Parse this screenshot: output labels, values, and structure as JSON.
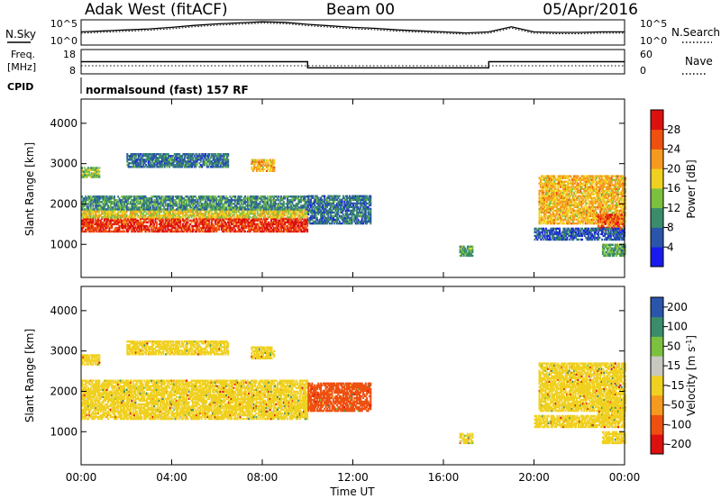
{
  "header": {
    "station": "Adak West (fitACF)",
    "beam": "Beam 00",
    "date": "05/Apr/2016"
  },
  "noise_panel": {
    "left_label": "N.Sky",
    "right_label": "N.Search",
    "left_ticks": [
      "10^5",
      "10^0"
    ],
    "right_ticks": [
      "10^5",
      "10^0"
    ]
  },
  "freq_panel": {
    "left_label_line1": "Freq.",
    "left_label_line2": "[MHz]",
    "right_label": "Nave",
    "left_ticks": [
      "18",
      "8"
    ],
    "right_ticks": [
      "60",
      "0"
    ]
  },
  "cpid": {
    "label": "CPID",
    "value": "normalsound (fast) 157 RF"
  },
  "x_axis": {
    "title": "Time UT",
    "ticks": [
      "00:00",
      "04:00",
      "08:00",
      "12:00",
      "16:00",
      "20:00",
      "00:00"
    ]
  },
  "colors": {
    "power": [
      "#1a1aee",
      "#2a55aa",
      "#3a8c6a",
      "#7cc040",
      "#f0d020",
      "#f59a20",
      "#ee5010",
      "#dd1010"
    ],
    "velocity": [
      "#dd1010",
      "#ee5010",
      "#f59a20",
      "#f0d020",
      "#c8c8c0",
      "#7cc040",
      "#3a8c6a",
      "#2a55aa"
    ]
  },
  "chart_data": [
    {
      "type": "line",
      "name": "noise",
      "ylabel": "N.Sky",
      "y2label": "N.Search",
      "ylim": [
        0,
        5
      ],
      "x_hours": [
        0,
        1,
        2,
        3,
        4,
        5,
        6,
        7,
        8,
        9,
        10,
        11,
        12,
        13,
        14,
        15,
        16,
        17,
        18,
        19,
        20,
        21,
        22,
        23,
        24
      ],
      "log_values": [
        2.6,
        2.8,
        3.0,
        3.2,
        3.5,
        3.9,
        4.2,
        4.4,
        4.6,
        4.5,
        4.1,
        3.8,
        3.5,
        3.3,
        3.0,
        2.8,
        2.6,
        2.4,
        2.6,
        3.6,
        2.6,
        2.5,
        2.5,
        2.6,
        2.6
      ]
    },
    {
      "type": "line",
      "name": "frequency",
      "ylabel": "Freq. [MHz]",
      "y2label": "Nave",
      "ylim": [
        8,
        18
      ],
      "y2lim": [
        0,
        60
      ],
      "x_hours": [
        0,
        10,
        10,
        18,
        18,
        24
      ],
      "freq_mhz": [
        13,
        13,
        10.5,
        10.5,
        13,
        13
      ],
      "nave": [
        20,
        20,
        20,
        20,
        20,
        20
      ]
    },
    {
      "type": "heatmap",
      "name": "power",
      "ylabel": "Slant Range [km]",
      "xlabel": "",
      "xlim": [
        0,
        24
      ],
      "ylim": [
        180,
        4600
      ],
      "y_ticks": [
        1000,
        2000,
        3000,
        4000
      ],
      "colorbar_label": "Power [dB]",
      "colorbar_ticks": [
        4,
        8,
        12,
        16,
        20,
        24,
        28
      ],
      "colorbar_range": [
        0,
        32
      ],
      "bands": [
        {
          "t": [
            0,
            10
          ],
          "range_km": [
            1300,
            1650
          ],
          "value": 28
        },
        {
          "t": [
            0,
            10
          ],
          "range_km": [
            1650,
            1850
          ],
          "value": 18
        },
        {
          "t": [
            0,
            10
          ],
          "range_km": [
            1850,
            2200
          ],
          "value": 10
        },
        {
          "t": [
            0,
            0.8
          ],
          "range_km": [
            2650,
            2900
          ],
          "value": 14
        },
        {
          "t": [
            2,
            6.5
          ],
          "range_km": [
            2900,
            3250
          ],
          "value": 8
        },
        {
          "t": [
            7.5,
            8.5
          ],
          "range_km": [
            2800,
            3100
          ],
          "value": 20
        },
        {
          "t": [
            10,
            12.8
          ],
          "range_km": [
            1500,
            2200
          ],
          "value": 8
        },
        {
          "t": [
            16.7,
            17.3
          ],
          "range_km": [
            700,
            950
          ],
          "value": 12
        },
        {
          "t": [
            20.2,
            24
          ],
          "range_km": [
            1500,
            2700
          ],
          "value": 20
        },
        {
          "t": [
            22.8,
            24
          ],
          "range_km": [
            1350,
            1750
          ],
          "value": 26
        },
        {
          "t": [
            20,
            24
          ],
          "range_km": [
            1100,
            1400
          ],
          "value": 6
        },
        {
          "t": [
            23,
            24
          ],
          "range_km": [
            700,
            1000
          ],
          "value": 12
        }
      ]
    },
    {
      "type": "heatmap",
      "name": "velocity",
      "ylabel": "Slant Range [km]",
      "xlabel": "Time UT",
      "xlim": [
        0,
        24
      ],
      "ylim": [
        180,
        4600
      ],
      "y_ticks": [
        1000,
        2000,
        3000,
        4000
      ],
      "colorbar_label": "Velocity [m s-1]",
      "colorbar_ticks": [
        "200",
        "100",
        "50",
        "15",
        "-15",
        "-50",
        "-100",
        "-200"
      ],
      "bands": [
        {
          "t": [
            0,
            10
          ],
          "range_km": [
            1300,
            2250
          ],
          "value": 0
        },
        {
          "t": [
            0,
            0.8
          ],
          "range_km": [
            2650,
            2900
          ],
          "value": 0
        },
        {
          "t": [
            2,
            6.5
          ],
          "range_km": [
            2900,
            3250
          ],
          "value": 0
        },
        {
          "t": [
            7.5,
            8.5
          ],
          "range_km": [
            2800,
            3100
          ],
          "value": 0
        },
        {
          "t": [
            10,
            12.8
          ],
          "range_km": [
            1500,
            2200
          ],
          "value": -60
        },
        {
          "t": [
            16.7,
            17.3
          ],
          "range_km": [
            700,
            950
          ],
          "value": 0
        },
        {
          "t": [
            20.2,
            24
          ],
          "range_km": [
            1500,
            2700
          ],
          "value": 0
        },
        {
          "t": [
            22.8,
            24
          ],
          "range_km": [
            1350,
            1750
          ],
          "value": 0
        },
        {
          "t": [
            20,
            24
          ],
          "range_km": [
            1100,
            1400
          ],
          "value": 0
        },
        {
          "t": [
            23,
            24
          ],
          "range_km": [
            700,
            1000
          ],
          "value": 0
        }
      ]
    }
  ]
}
